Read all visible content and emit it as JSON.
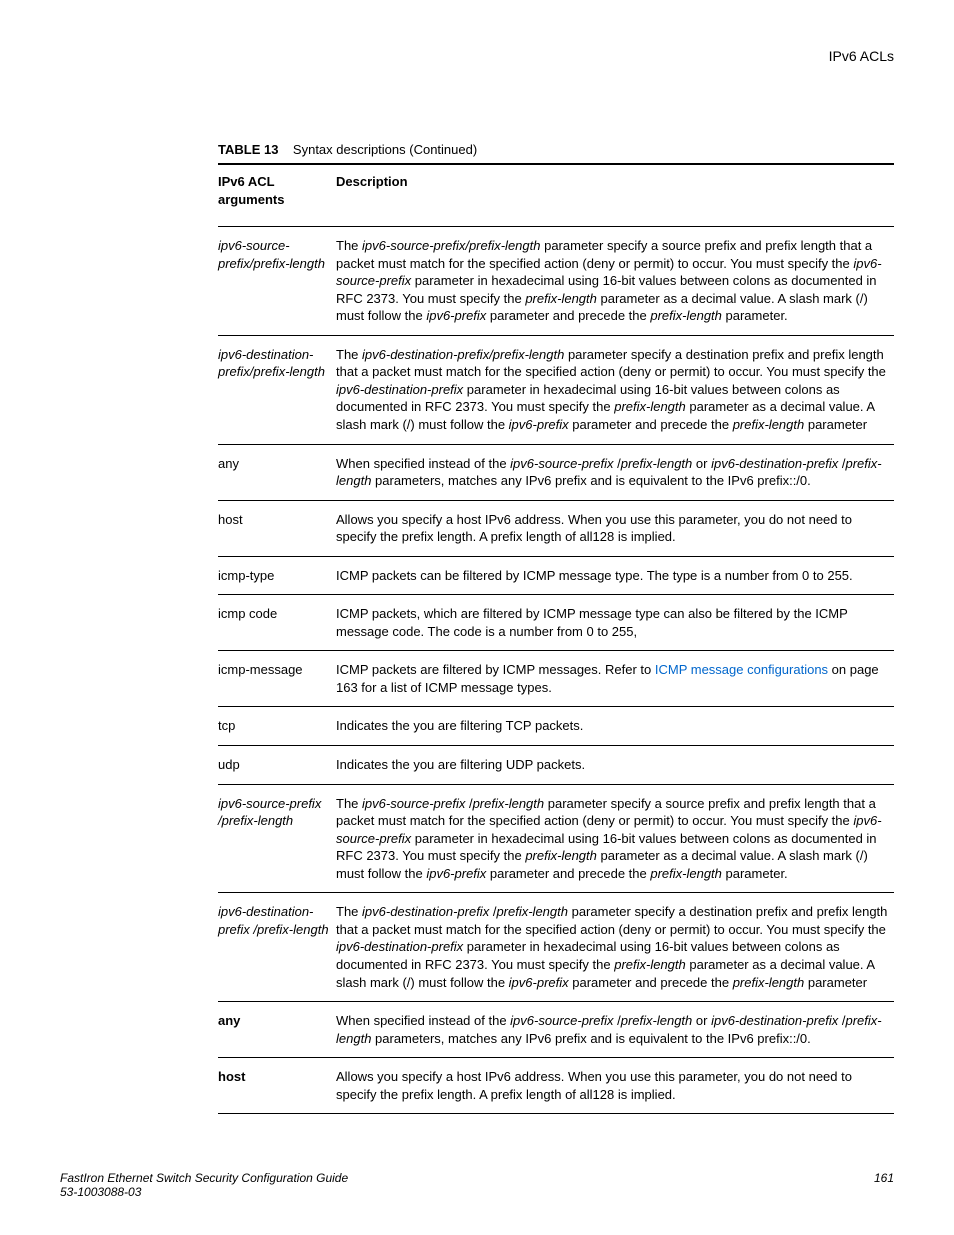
{
  "page": {
    "header_right": "IPv6 ACLs",
    "table_label": "TABLE 13",
    "table_title": "Syntax descriptions (Continued)",
    "col1": "IPv6 ACL arguments",
    "col2": "Description",
    "footer_title": "FastIron Ethernet Switch Security Configuration Guide",
    "footer_doc": "53-1003088-03",
    "footer_page": "161"
  },
  "rows": [
    {
      "arg_italic": true,
      "arg_bold": false,
      "arg": "ipv6-source-prefix/prefix-length",
      "desc_segments": [
        {
          "t": "The "
        },
        {
          "t": "ipv6-source-prefix/prefix-length",
          "i": true
        },
        {
          "t": " parameter specify a source prefix and prefix length that a packet must match for the specified action (deny or permit) to occur. You must specify the "
        },
        {
          "t": "ipv6-source-prefix",
          "i": true
        },
        {
          "t": " parameter in hexadecimal using 16-bit values between colons as documented in RFC 2373. You must specify the "
        },
        {
          "t": "prefix-length",
          "i": true
        },
        {
          "t": " parameter as a decimal value. A slash mark (/) must follow the "
        },
        {
          "t": "ipv6-prefix",
          "i": true
        },
        {
          "t": " parameter and precede the "
        },
        {
          "t": "prefix-length",
          "i": true
        },
        {
          "t": " parameter."
        }
      ]
    },
    {
      "arg_italic": true,
      "arg_bold": false,
      "arg": "ipv6-destination-prefix/prefix-length",
      "desc_segments": [
        {
          "t": "The "
        },
        {
          "t": "ipv6-destination-prefix/prefix-length",
          "i": true
        },
        {
          "t": " parameter specify a destination prefix and prefix length that a packet must match for the specified action (deny or permit) to occur. You must specify the "
        },
        {
          "t": "ipv6-destination-prefix",
          "i": true
        },
        {
          "t": " parameter in hexadecimal using 16-bit values between colons as documented in RFC 2373. You must specify the "
        },
        {
          "t": "prefix-length",
          "i": true
        },
        {
          "t": " parameter as a decimal value. A slash mark (/) must follow the "
        },
        {
          "t": "ipv6-prefix",
          "i": true
        },
        {
          "t": " parameter and precede the "
        },
        {
          "t": "prefix-length",
          "i": true
        },
        {
          "t": " parameter"
        }
      ]
    },
    {
      "arg_italic": false,
      "arg_bold": false,
      "arg": "any",
      "desc_segments": [
        {
          "t": "When specified instead of the "
        },
        {
          "t": "ipv6-source-prefix",
          "i": true
        },
        {
          "t": " /"
        },
        {
          "t": "prefix-length",
          "i": true
        },
        {
          "t": " or "
        },
        {
          "t": "ipv6-destination-prefix",
          "i": true
        },
        {
          "t": " /"
        },
        {
          "t": "prefix-length",
          "i": true
        },
        {
          "t": " parameters, matches any IPv6 prefix and is equivalent to the IPv6 prefix::/0."
        }
      ]
    },
    {
      "arg_italic": false,
      "arg_bold": false,
      "arg": "host",
      "desc_segments": [
        {
          "t": "Allows you specify a host IPv6 address. When you use this parameter, you do not need to specify the prefix length. A prefix length of all128 is implied."
        }
      ]
    },
    {
      "arg_italic": false,
      "arg_bold": false,
      "arg": "icmp-type",
      "desc_segments": [
        {
          "t": "ICMP packets can be filtered by ICMP message type. The type is a number from 0 to 255."
        }
      ]
    },
    {
      "arg_italic": false,
      "arg_bold": false,
      "arg": "icmp code",
      "desc_segments": [
        {
          "t": "ICMP packets, which are filtered by ICMP message type can also be filtered by the ICMP message code. The code is a number from 0 to 255,"
        }
      ]
    },
    {
      "arg_italic": false,
      "arg_bold": false,
      "arg": "icmp-message",
      "desc_segments": [
        {
          "t": "ICMP packets are filtered by ICMP messages. Refer to "
        },
        {
          "t": "ICMP message configurations",
          "link": true
        },
        {
          "t": " on page 163 for a list of ICMP message types."
        }
      ]
    },
    {
      "arg_italic": false,
      "arg_bold": false,
      "arg": "tcp",
      "desc_segments": [
        {
          "t": "Indicates the you are filtering TCP packets."
        }
      ]
    },
    {
      "arg_italic": false,
      "arg_bold": false,
      "arg": "udp",
      "desc_segments": [
        {
          "t": "Indicates the you are filtering UDP packets."
        }
      ]
    },
    {
      "arg_italic": true,
      "arg_bold": false,
      "arg": "ipv6-source-prefix /prefix-length",
      "desc_segments": [
        {
          "t": "The "
        },
        {
          "t": "ipv6-source-prefix",
          "i": true
        },
        {
          "t": " /"
        },
        {
          "t": "prefix-length",
          "i": true
        },
        {
          "t": " parameter specify a source prefix and prefix length that a packet must match for the specified action (deny or permit) to occur. You must specify the "
        },
        {
          "t": "ipv6-source-prefix",
          "i": true
        },
        {
          "t": " parameter in hexadecimal using 16-bit values between colons as documented in RFC 2373. You must specify the "
        },
        {
          "t": "prefix-length",
          "i": true
        },
        {
          "t": " parameter as a decimal value. A slash mark (/) must follow the "
        },
        {
          "t": "ipv6-prefix",
          "i": true
        },
        {
          "t": " parameter and precede the "
        },
        {
          "t": "prefix-length",
          "i": true
        },
        {
          "t": " parameter."
        }
      ]
    },
    {
      "arg_italic": true,
      "arg_bold": false,
      "arg": "ipv6-destination-prefix /prefix-length",
      "desc_segments": [
        {
          "t": "The "
        },
        {
          "t": "ipv6-destination-prefix",
          "i": true
        },
        {
          "t": " /"
        },
        {
          "t": "prefix-length",
          "i": true
        },
        {
          "t": " parameter specify a destination prefix and prefix length that a packet must match for the specified action (deny or permit) to occur. You must specify the "
        },
        {
          "t": "ipv6-destination-prefix",
          "i": true
        },
        {
          "t": " parameter in hexadecimal using 16-bit values between colons as documented in RFC 2373. You must specify the "
        },
        {
          "t": "prefix-length",
          "i": true
        },
        {
          "t": " parameter as a decimal value. A slash mark (/) must follow the "
        },
        {
          "t": "ipv6-prefix",
          "i": true
        },
        {
          "t": " parameter and precede the "
        },
        {
          "t": "prefix-length",
          "i": true
        },
        {
          "t": " parameter"
        }
      ]
    },
    {
      "arg_italic": false,
      "arg_bold": true,
      "arg": "any",
      "desc_segments": [
        {
          "t": "When specified instead of the "
        },
        {
          "t": "ipv6-source-prefix",
          "i": true
        },
        {
          "t": " /"
        },
        {
          "t": "prefix-length",
          "i": true
        },
        {
          "t": " or "
        },
        {
          "t": "ipv6-destination-prefix",
          "i": true
        },
        {
          "t": " /"
        },
        {
          "t": "prefix-length",
          "i": true
        },
        {
          "t": " parameters, matches any IPv6 prefix and is equivalent to the IPv6 prefix::/0."
        }
      ]
    },
    {
      "arg_italic": false,
      "arg_bold": true,
      "arg": "host",
      "desc_segments": [
        {
          "t": "Allows you specify a host IPv6 address. When you use this parameter, you do not need to specify the prefix length. A prefix length of all128 is implied."
        }
      ]
    }
  ]
}
